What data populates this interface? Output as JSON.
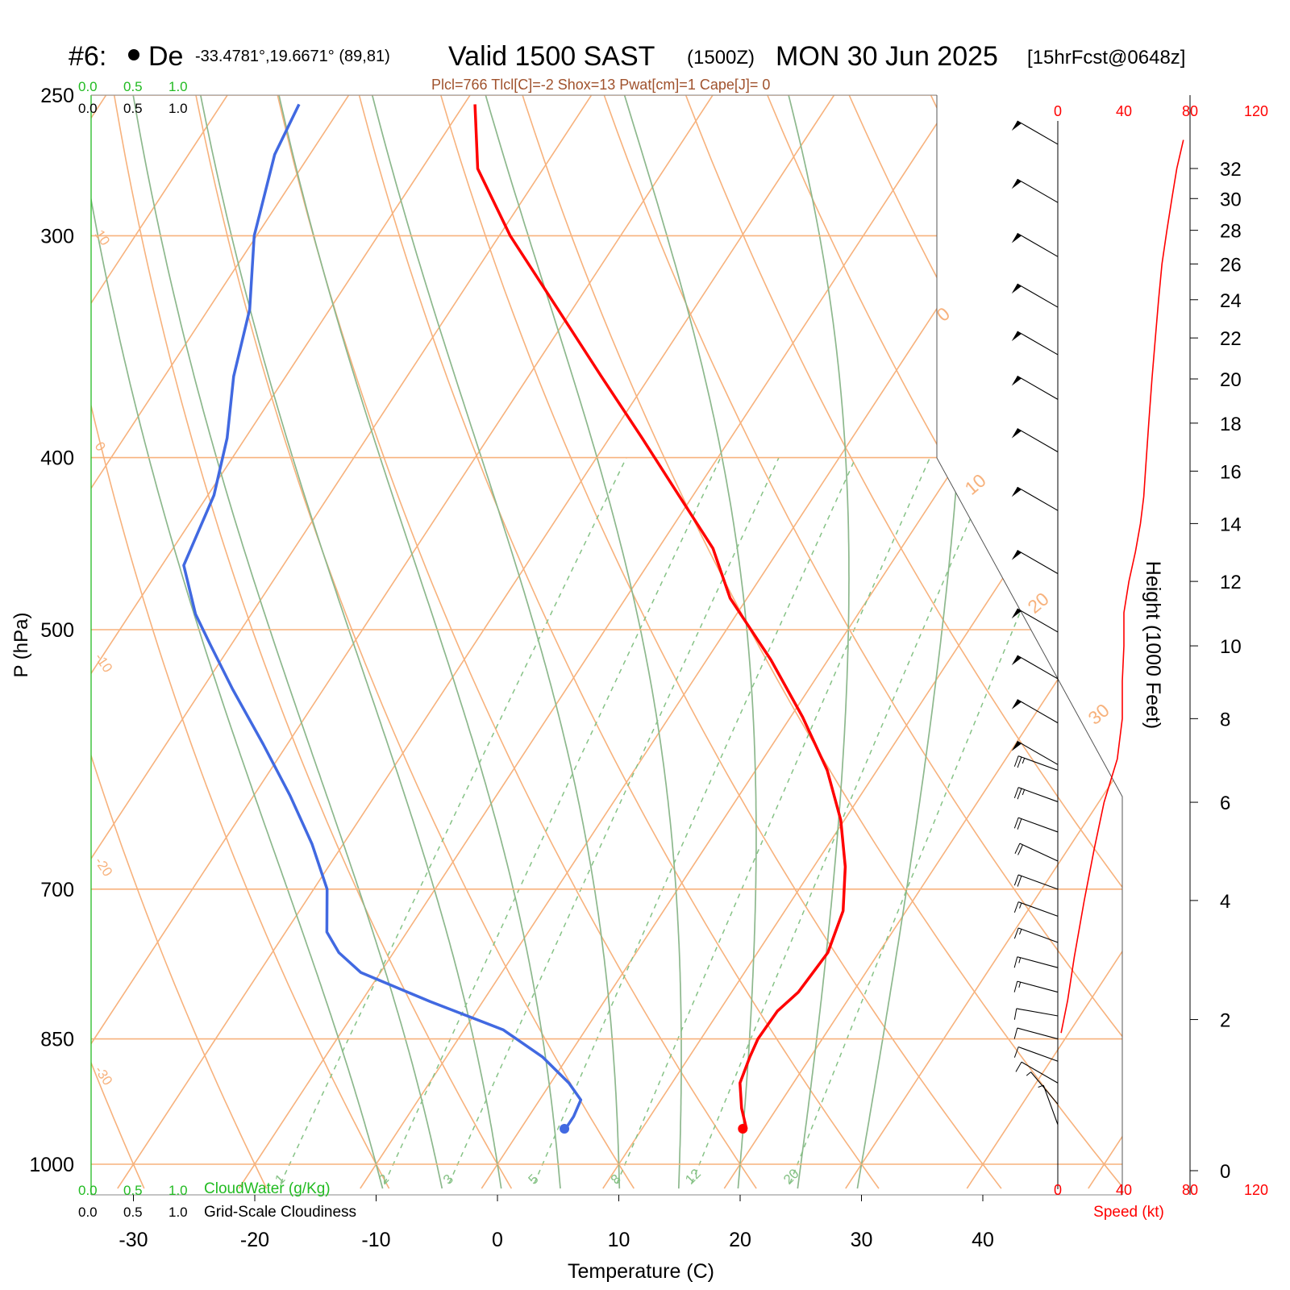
{
  "header": {
    "station": "#6:",
    "station_name": "De",
    "coords": "-33.4781°,19.6671° (89,81)",
    "valid": "Valid 1500 SAST",
    "valid_z": "(1500Z)",
    "date": "MON 30 Jun 2025",
    "forecast": "[15hrFcst@0648z]",
    "indices": "Plcl=766 Tlcl[C]=-2 Shox=13 Pwat[cm]=1 Cape[J]= 0"
  },
  "cloud_scale": {
    "top_green": [
      "0.0",
      "0.5",
      "1.0"
    ],
    "top_black": [
      "0.0",
      "0.5",
      "1.0"
    ],
    "bottom_green": [
      "0.0",
      "0.5",
      "1.0"
    ],
    "bottom_black": [
      "0.0",
      "0.5",
      "1.0"
    ],
    "cloudwater_label": "CloudWater (g/Kg)",
    "cloudiness_label": "Grid-Scale Cloudiness"
  },
  "colors": {
    "temperature": "#ff0000",
    "dewpoint": "#4169e1",
    "isotherm": "#f7b27d",
    "dry_adiabat": "#f7b27d",
    "moist_adiabat": "#8db88d",
    "mixing_ratio": "#86c286",
    "cloud_green": "#22bb22",
    "indices": "#a0522d",
    "speed": "#ff0000"
  },
  "chart_data": {
    "type": "line",
    "subtype": "skew-t log-p sounding",
    "xlabel": "Temperature (C)",
    "ylabel": "P (hPa)",
    "right_ylabel": "Height (1000 Feet)",
    "speed_label": "Speed (kt)",
    "pressure_ticks": [
      250,
      300,
      400,
      500,
      700,
      850,
      1000
    ],
    "temperature_ticks": [
      -30,
      -20,
      -10,
      0,
      10,
      20,
      30,
      40
    ],
    "height_ticks": [
      0,
      2,
      4,
      6,
      8,
      10,
      12,
      14,
      16,
      18,
      20,
      22,
      24,
      26,
      28,
      30,
      32
    ],
    "speed_ticks": [
      0,
      40,
      80,
      120
    ],
    "isotherm_labels": [
      "10",
      "0",
      "-10",
      "-20",
      "-30"
    ],
    "isotherm_labels_right": [
      "0",
      "10",
      "20",
      "30"
    ],
    "mixing_ratio_labels": [
      "1",
      "2",
      "3",
      "5",
      "8",
      "12",
      "20"
    ],
    "mixing_ratios_gkg": [
      1,
      2,
      3,
      5,
      8,
      12,
      20
    ],
    "moist_adiabats_c": [
      -10,
      -5,
      0,
      5,
      10,
      15,
      20,
      25,
      30
    ],
    "dry_adiabats_c": [
      -40,
      -30,
      -20,
      -10,
      0,
      10,
      20,
      30,
      40,
      50,
      60,
      70,
      80,
      90,
      100,
      110
    ],
    "temperature_profile": [
      {
        "p": 955,
        "t": 18.6
      },
      {
        "p": 930,
        "t": 17.1
      },
      {
        "p": 900,
        "t": 15.6
      },
      {
        "p": 870,
        "t": 15.0
      },
      {
        "p": 850,
        "t": 14.7
      },
      {
        "p": 820,
        "t": 14.8
      },
      {
        "p": 800,
        "t": 15.5
      },
      {
        "p": 760,
        "t": 15.8
      },
      {
        "p": 720,
        "t": 14.8
      },
      {
        "p": 680,
        "t": 12.6
      },
      {
        "p": 640,
        "t": 9.7
      },
      {
        "p": 600,
        "t": 5.9
      },
      {
        "p": 560,
        "t": 1.0
      },
      {
        "p": 520,
        "t": -4.7
      },
      {
        "p": 480,
        "t": -11.4
      },
      {
        "p": 450,
        "t": -15.5
      },
      {
        "p": 420,
        "t": -21.2
      },
      {
        "p": 390,
        "t": -27.3
      },
      {
        "p": 360,
        "t": -34.0
      },
      {
        "p": 330,
        "t": -41.2
      },
      {
        "p": 300,
        "t": -49.1
      },
      {
        "p": 275,
        "t": -55.4
      },
      {
        "p": 253,
        "t": -59.1
      }
    ],
    "dewpoint_profile": [
      {
        "p": 955,
        "td": 3.7
      },
      {
        "p": 940,
        "td": 3.7
      },
      {
        "p": 920,
        "td": 3.4
      },
      {
        "p": 900,
        "td": 1.5
      },
      {
        "p": 870,
        "td": -2.1
      },
      {
        "p": 840,
        "td": -6.8
      },
      {
        "p": 810,
        "td": -14.3
      },
      {
        "p": 780,
        "td": -21.6
      },
      {
        "p": 760,
        "td": -24.5
      },
      {
        "p": 740,
        "td": -26.6
      },
      {
        "p": 700,
        "td": -28.9
      },
      {
        "p": 660,
        "td": -32.6
      },
      {
        "p": 620,
        "td": -37.0
      },
      {
        "p": 580,
        "td": -42.0
      },
      {
        "p": 540,
        "td": -47.5
      },
      {
        "p": 510,
        "td": -51.7
      },
      {
        "p": 490,
        "td": -54.6
      },
      {
        "p": 460,
        "td": -58.2
      },
      {
        "p": 420,
        "td": -59.5
      },
      {
        "p": 390,
        "td": -61.5
      },
      {
        "p": 360,
        "td": -64.3
      },
      {
        "p": 330,
        "td": -66.6
      },
      {
        "p": 300,
        "td": -70.2
      },
      {
        "p": 270,
        "td": -72.9
      },
      {
        "p": 253,
        "td": -73.6
      }
    ],
    "parcel_start": {
      "t": 18.3,
      "td": 3.6,
      "p": 955
    },
    "wind_speed_profile": [
      {
        "h": 1.8,
        "kt": 2
      },
      {
        "h": 2.3,
        "kt": 6
      },
      {
        "h": 3.0,
        "kt": 10
      },
      {
        "h": 4.0,
        "kt": 16
      },
      {
        "h": 5.0,
        "kt": 22
      },
      {
        "h": 6.0,
        "kt": 28
      },
      {
        "h": 7.0,
        "kt": 36
      },
      {
        "h": 8.0,
        "kt": 39
      },
      {
        "h": 9.0,
        "kt": 39
      },
      {
        "h": 10.0,
        "kt": 40
      },
      {
        "h": 11.0,
        "kt": 40
      },
      {
        "h": 12.0,
        "kt": 43
      },
      {
        "h": 13.0,
        "kt": 47
      },
      {
        "h": 14.0,
        "kt": 50
      },
      {
        "h": 15.0,
        "kt": 52
      },
      {
        "h": 16.0,
        "kt": 53
      },
      {
        "h": 18.0,
        "kt": 55
      },
      {
        "h": 20.0,
        "kt": 57
      },
      {
        "h": 22.0,
        "kt": 59
      },
      {
        "h": 24.0,
        "kt": 61
      },
      {
        "h": 26.0,
        "kt": 63
      },
      {
        "h": 28.0,
        "kt": 66
      },
      {
        "h": 30.0,
        "kt": 69
      },
      {
        "h": 32.0,
        "kt": 72
      },
      {
        "h": 34.0,
        "kt": 76
      }
    ],
    "wind_barbs_upper_hpa": [
      255,
      275,
      295,
      315,
      335,
      355,
      380,
      410,
      445,
      480,
      510,
      540,
      570
    ],
    "barb_speed_upper_kt": 50,
    "barb_dir_upper_deg": 300,
    "wind_barbs_lower": [
      {
        "p": 600,
        "dir": 290,
        "kt": 28
      },
      {
        "p": 625,
        "dir": 290,
        "kt": 25
      },
      {
        "p": 650,
        "dir": 290,
        "kt": 22
      },
      {
        "p": 675,
        "dir": 295,
        "kt": 20
      },
      {
        "p": 700,
        "dir": 290,
        "kt": 20
      },
      {
        "p": 725,
        "dir": 290,
        "kt": 18
      },
      {
        "p": 750,
        "dir": 290,
        "kt": 17
      },
      {
        "p": 775,
        "dir": 285,
        "kt": 15
      },
      {
        "p": 800,
        "dir": 285,
        "kt": 15
      },
      {
        "p": 825,
        "dir": 280,
        "kt": 12
      },
      {
        "p": 850,
        "dir": 285,
        "kt": 10
      },
      {
        "p": 875,
        "dir": 290,
        "kt": 10
      },
      {
        "p": 900,
        "dir": 300,
        "kt": 10
      },
      {
        "p": 925,
        "dir": 320,
        "kt": 8
      },
      {
        "p": 950,
        "dir": 340,
        "kt": 5
      }
    ]
  }
}
